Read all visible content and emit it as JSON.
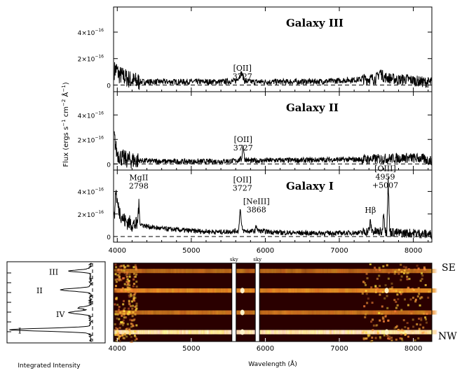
{
  "chart_data": {
    "type": "line",
    "xlim": [
      3950,
      8250
    ],
    "x_ticks": [
      4000,
      5000,
      6000,
      7000,
      8000
    ],
    "xlabel": "Wavelength (Å)",
    "ylabel_parts": [
      "Flux (ergs s",
      "−1",
      " cm",
      "−2",
      " Å",
      "−1",
      ")"
    ],
    "ylim": [
      -5e-17,
      5.9e-16
    ],
    "y_ticks": [
      {
        "value": 0,
        "label_main": "0",
        "label_exp": ""
      },
      {
        "value": 2e-16,
        "label_main": "2×10",
        "label_exp": "−16"
      },
      {
        "value": 4e-16,
        "label_main": "4×10",
        "label_exp": "−16"
      }
    ],
    "panels": [
      {
        "label": "Galaxy III",
        "x": [
          3960,
          3990,
          4020,
          4060,
          4100,
          4140,
          4180,
          4220,
          4300,
          4500,
          4800,
          5100,
          5400,
          5600,
          5680,
          5700,
          5720,
          5800,
          6100,
          6500,
          6900,
          7200,
          7500,
          7550,
          7600,
          7700,
          7800,
          7900,
          8000,
          8100,
          8200
        ],
        "y": [
          1.1e-16,
          1.2e-16,
          8e-17,
          7e-17,
          6e-17,
          5e-17,
          4e-17,
          3e-17,
          2.5e-17,
          2.5e-17,
          2.5e-17,
          2.5e-17,
          2.5e-17,
          3e-17,
          9e-17,
          6e-17,
          3e-17,
          2.5e-17,
          2.5e-17,
          2.5e-17,
          3e-17,
          4e-17,
          5e-17,
          1e-16,
          6e-17,
          5e-17,
          4e-17,
          4.5e-17,
          3.5e-17,
          2.5e-17,
          2e-17
        ],
        "lines": [
          {
            "name": "[OII]",
            "wave": "3727",
            "x": 5690,
            "y": 1.1e-16
          }
        ]
      },
      {
        "label": "Galaxy II",
        "x": [
          3960,
          3990,
          4020,
          4060,
          4100,
          4200,
          4400,
          4700,
          5000,
          5300,
          5600,
          5680,
          5700,
          5720,
          5800,
          6100,
          6500,
          6900,
          7200,
          7500,
          7700,
          7900,
          8100,
          8200
        ],
        "y": [
          2.2e-16,
          1e-16,
          7e-17,
          5e-17,
          4e-17,
          3e-17,
          2.5e-17,
          2e-17,
          2e-17,
          2e-17,
          2.5e-17,
          4e-17,
          1.6e-16,
          4e-17,
          2.5e-17,
          3e-17,
          3e-17,
          3.5e-17,
          3.5e-17,
          4e-17,
          4.5e-17,
          5e-17,
          4.5e-17,
          3e-17
        ],
        "lines": [
          {
            "name": "[OII]",
            "wave": "3727",
            "x": 5700,
            "y": 1.8e-16
          }
        ]
      },
      {
        "label": "Galaxy I",
        "x": [
          3960,
          3980,
          4000,
          4020,
          4060,
          4100,
          4200,
          4270,
          4290,
          4310,
          4400,
          4600,
          5000,
          5400,
          5640,
          5660,
          5680,
          5700,
          5800,
          5860,
          5880,
          5900,
          6200,
          6600,
          7000,
          7300,
          7400,
          7420,
          7440,
          7500,
          7580,
          7600,
          7620,
          7640,
          7660,
          7680,
          7700,
          7800,
          8000,
          8200
        ],
        "y": [
          1.5e-16,
          4.2e-16,
          3e-16,
          2.4e-16,
          1.8e-16,
          1.4e-16,
          1.1e-16,
          1e-16,
          2.8e-16,
          1.1e-16,
          9e-17,
          7e-17,
          5e-17,
          4e-17,
          5e-17,
          2.6e-16,
          9e-17,
          5e-17,
          4.5e-17,
          5e-17,
          1e-16,
          5e-17,
          3.5e-17,
          3e-17,
          3e-17,
          3.5e-17,
          5e-17,
          1.3e-16,
          5e-17,
          4e-17,
          4e-17,
          2.3e-16,
          5e-17,
          4e-17,
          5.1e-16,
          5e-17,
          4e-17,
          3e-17,
          3e-17,
          2e-17
        ],
        "lines": [
          {
            "name": "MgII",
            "wave": "2798",
            "x": 4290,
            "y": 5e-16
          },
          {
            "name": "[OII]",
            "wave": "3727",
            "x": 5690,
            "y": 4.8e-16
          },
          {
            "name": "[NeIII]",
            "wave": "3868",
            "x": 5880,
            "y": 2.9e-16
          },
          {
            "name": "Hβ",
            "wave": "",
            "x": 7420,
            "y": 2.1e-16
          },
          {
            "name": "[OIII]",
            "wave": "4959",
            "wave2": "+5007",
            "x": 7620,
            "y": 5.8e-16
          }
        ]
      }
    ],
    "image_panel": {
      "xlabel": "Wavelength (Å)",
      "sky_label": "sky",
      "sky_lines": [
        5577,
        5893
      ],
      "slit_labels": {
        "top": "SE",
        "bottom": "NW"
      },
      "galaxy_rows": [
        0.1,
        0.35,
        0.63,
        0.88
      ],
      "galaxy_intensity": [
        0.25,
        0.45,
        0.3,
        1.0
      ]
    },
    "profile_panel": {
      "xlabel": "Integrated Intensity",
      "labels": [
        {
          "text": "III",
          "pos": 0.11
        },
        {
          "text": "II",
          "pos": 0.35
        },
        {
          "text": "IV",
          "pos": 0.65
        },
        {
          "text": "I",
          "pos": 0.86
        }
      ]
    }
  }
}
